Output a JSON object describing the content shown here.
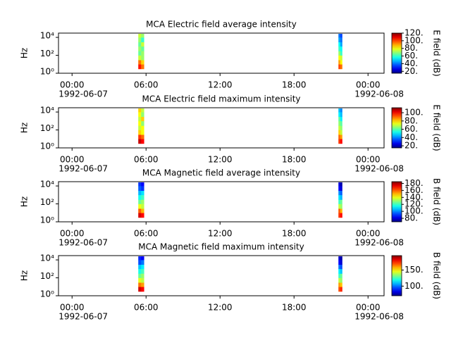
{
  "chart_data": [
    {
      "type": "heatmap",
      "title": "MCA  Electric field average intensity",
      "ylabel": "Hz",
      "colorbar_label": "E field (dB)",
      "colormap": "jet",
      "ylim": [
        1,
        30000
      ],
      "log_y": true,
      "yticks": [
        {
          "value": 1,
          "label": "10⁰"
        },
        {
          "value": 100,
          "label": "10²"
        },
        {
          "value": 10000,
          "label": "10⁴"
        }
      ],
      "xlim": [
        -1.1,
        25.3
      ],
      "xticks": [
        {
          "value": 0,
          "label": "00:00"
        },
        {
          "value": 6,
          "label": "06:00"
        },
        {
          "value": 12,
          "label": "12:00"
        },
        {
          "value": 18,
          "label": "18:00"
        },
        {
          "value": 24,
          "label": "00:00"
        }
      ],
      "dates": [
        {
          "value": 0,
          "label": "1992-06-07"
        },
        {
          "value": 24,
          "label": "1992-06-08"
        }
      ],
      "clim": [
        15,
        120
      ],
      "cticks": [
        {
          "value": 20,
          "label": "20."
        },
        {
          "value": 40,
          "label": "40."
        },
        {
          "value": 60,
          "label": "60."
        },
        {
          "value": 80,
          "label": "80."
        },
        {
          "value": 100,
          "label": "100."
        },
        {
          "value": 120,
          "label": "120."
        }
      ],
      "freq_bins": [
        3,
        10,
        30,
        100,
        300,
        1000,
        3000,
        10000,
        25000
      ],
      "bursts": [
        {
          "time_bins": [
            5.37,
            5.6,
            5.83
          ],
          "values": [
            [
              105,
              95
            ],
            [
              95,
              85
            ],
            [
              75,
              70
            ],
            [
              65,
              70
            ],
            [
              70,
              65
            ],
            [
              65,
              75
            ],
            [
              70,
              60
            ],
            [
              75,
              70
            ]
          ]
        },
        {
          "time_bins": [
            21.6,
            21.75,
            21.9
          ],
          "values": [
            [
              100,
              95
            ],
            [
              90,
              80
            ],
            [
              80,
              75
            ],
            [
              70,
              60
            ],
            [
              60,
              55
            ],
            [
              55,
              45
            ],
            [
              45,
              40
            ],
            [
              40,
              35
            ]
          ]
        }
      ]
    },
    {
      "type": "heatmap",
      "title": "MCA  Electric field maximum intensity",
      "ylabel": "Hz",
      "colorbar_label": "E field (dB)",
      "colormap": "jet",
      "ylim": [
        1,
        30000
      ],
      "log_y": true,
      "yticks": [
        {
          "value": 1,
          "label": "10⁰"
        },
        {
          "value": 100,
          "label": "10²"
        },
        {
          "value": 10000,
          "label": "10⁴"
        }
      ],
      "xlim": [
        -1.1,
        25.3
      ],
      "xticks": [
        {
          "value": 0,
          "label": "00:00"
        },
        {
          "value": 6,
          "label": "06:00"
        },
        {
          "value": 12,
          "label": "12:00"
        },
        {
          "value": 18,
          "label": "18:00"
        },
        {
          "value": 24,
          "label": "00:00"
        }
      ],
      "dates": [
        {
          "value": 0,
          "label": "1992-06-07"
        },
        {
          "value": 24,
          "label": "1992-06-08"
        }
      ],
      "clim": [
        15,
        112
      ],
      "cticks": [
        {
          "value": 20,
          "label": "20."
        },
        {
          "value": 40,
          "label": "40."
        },
        {
          "value": 60,
          "label": "60."
        },
        {
          "value": 80,
          "label": "80."
        },
        {
          "value": 100,
          "label": "100."
        }
      ],
      "freq_bins": [
        3,
        10,
        30,
        100,
        300,
        1000,
        3000,
        10000,
        25000
      ],
      "bursts": [
        {
          "time_bins": [
            5.37,
            5.6,
            5.83
          ],
          "values": [
            [
              105,
              100
            ],
            [
              95,
              90
            ],
            [
              80,
              75
            ],
            [
              70,
              75
            ],
            [
              75,
              65
            ],
            [
              70,
              80
            ],
            [
              75,
              65
            ],
            [
              80,
              70
            ]
          ]
        },
        {
          "time_bins": [
            21.6,
            21.75,
            21.9
          ],
          "values": [
            [
              95,
              100
            ],
            [
              90,
              85
            ],
            [
              80,
              70
            ],
            [
              70,
              65
            ],
            [
              65,
              60
            ],
            [
              60,
              50
            ],
            [
              50,
              45
            ],
            [
              45,
              40
            ]
          ]
        }
      ]
    },
    {
      "type": "heatmap",
      "title": "MCA  Magnetic field average intensity",
      "ylabel": "Hz",
      "colorbar_label": "B field (dB)",
      "colormap": "jet",
      "ylim": [
        1,
        30000
      ],
      "log_y": true,
      "yticks": [
        {
          "value": 1,
          "label": "10⁰"
        },
        {
          "value": 100,
          "label": "10²"
        },
        {
          "value": 10000,
          "label": "10⁴"
        }
      ],
      "xlim": [
        -1.1,
        25.3
      ],
      "xticks": [
        {
          "value": 0,
          "label": "00:00"
        },
        {
          "value": 6,
          "label": "06:00"
        },
        {
          "value": 12,
          "label": "12:00"
        },
        {
          "value": 18,
          "label": "18:00"
        },
        {
          "value": 24,
          "label": "00:00"
        }
      ],
      "dates": [
        {
          "value": 0,
          "label": "1992-06-07"
        },
        {
          "value": 24,
          "label": "1992-06-08"
        }
      ],
      "clim": [
        70,
        185
      ],
      "cticks": [
        {
          "value": 80,
          "label": "80."
        },
        {
          "value": 100,
          "label": "100."
        },
        {
          "value": 120,
          "label": "120."
        },
        {
          "value": 140,
          "label": "140."
        },
        {
          "value": 160,
          "label": "160."
        },
        {
          "value": 180,
          "label": "180."
        }
      ],
      "freq_bins": [
        3,
        10,
        30,
        100,
        300,
        1000,
        3000,
        10000,
        25000
      ],
      "bursts": [
        {
          "time_bins": [
            5.37,
            5.6,
            5.83
          ],
          "values": [
            [
              175,
              170
            ],
            [
              160,
              150
            ],
            [
              140,
              135
            ],
            [
              125,
              130
            ],
            [
              115,
              120
            ],
            [
              105,
              110
            ],
            [
              95,
              90
            ],
            [
              90,
              85
            ]
          ]
        },
        {
          "time_bins": [
            21.6,
            21.75,
            21.9
          ],
          "values": [
            [
              165,
              170
            ],
            [
              160,
              150
            ],
            [
              135,
              130
            ],
            [
              120,
              125
            ],
            [
              110,
              105
            ],
            [
              100,
              95
            ],
            [
              85,
              80
            ],
            [
              80,
              75
            ]
          ]
        }
      ]
    },
    {
      "type": "heatmap",
      "title": "MCA  Magnetic field maximum intensity",
      "ylabel": "Hz",
      "colorbar_label": "B field (dB)",
      "colormap": "jet",
      "ylim": [
        1,
        30000
      ],
      "log_y": true,
      "yticks": [
        {
          "value": 1,
          "label": "10⁰"
        },
        {
          "value": 100,
          "label": "10²"
        },
        {
          "value": 10000,
          "label": "10⁴"
        }
      ],
      "xlim": [
        -1.1,
        25.3
      ],
      "xticks": [
        {
          "value": 0,
          "label": "00:00"
        },
        {
          "value": 6,
          "label": "06:00"
        },
        {
          "value": 12,
          "label": "12:00"
        },
        {
          "value": 18,
          "label": "18:00"
        },
        {
          "value": 24,
          "label": "00:00"
        }
      ],
      "dates": [
        {
          "value": 0,
          "label": "1992-06-07"
        },
        {
          "value": 24,
          "label": "1992-06-08"
        }
      ],
      "clim": [
        70,
        195
      ],
      "cticks": [
        {
          "value": 100,
          "label": "100."
        },
        {
          "value": 150,
          "label": "150."
        }
      ],
      "freq_bins": [
        3,
        10,
        30,
        100,
        300,
        1000,
        3000,
        10000,
        25000
      ],
      "bursts": [
        {
          "time_bins": [
            5.37,
            5.6,
            5.83
          ],
          "values": [
            [
              185,
              180
            ],
            [
              165,
              160
            ],
            [
              145,
              140
            ],
            [
              130,
              135
            ],
            [
              120,
              125
            ],
            [
              110,
              115
            ],
            [
              95,
              100
            ],
            [
              90,
              85
            ]
          ]
        },
        {
          "time_bins": [
            21.6,
            21.75,
            21.9
          ],
          "values": [
            [
              170,
              175
            ],
            [
              160,
              155
            ],
            [
              140,
              135
            ],
            [
              125,
              130
            ],
            [
              115,
              110
            ],
            [
              100,
              95
            ],
            [
              85,
              80
            ],
            [
              80,
              75
            ]
          ]
        }
      ]
    }
  ]
}
